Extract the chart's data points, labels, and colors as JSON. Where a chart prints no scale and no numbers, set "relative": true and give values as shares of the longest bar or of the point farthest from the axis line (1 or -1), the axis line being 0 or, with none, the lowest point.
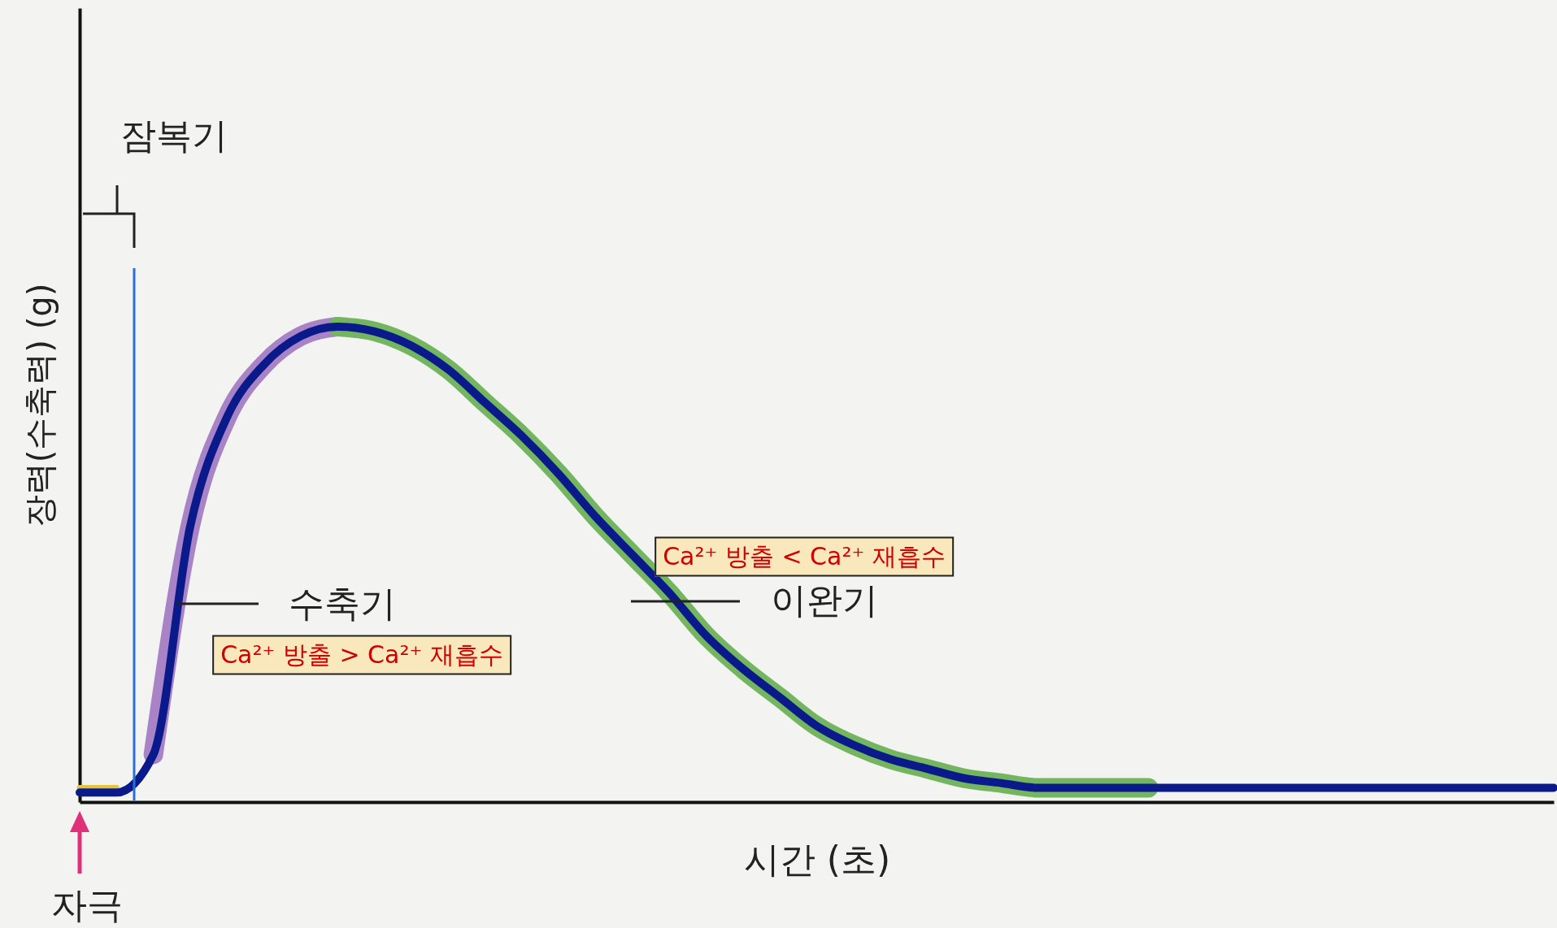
{
  "chart_data": {
    "type": "line",
    "relative": true,
    "xlabel": "시간 (초)",
    "ylabel": "장력(수축력) (g)",
    "marker": "none",
    "line_style": "solid",
    "categories": [
      null,
      null,
      null,
      null,
      null,
      null,
      null,
      null,
      null,
      null,
      null,
      null,
      null,
      null,
      null,
      null,
      null,
      null,
      null,
      null,
      null,
      null,
      null,
      null,
      null,
      null,
      null,
      null,
      null,
      null,
      null,
      null,
      null,
      null,
      null,
      null,
      null,
      null,
      null,
      null,
      null
    ],
    "series": [
      {
        "color": "#a883c6",
        "values": [
          null,
          null,
          0.1,
          0.58,
          0.81,
          0.92,
          0.98,
          1,
          null,
          null,
          null,
          null,
          null,
          null,
          null,
          null,
          null,
          null,
          null,
          null,
          null,
          null,
          null,
          null,
          null,
          null,
          null,
          null,
          null,
          null,
          null,
          null,
          null,
          null,
          null,
          null,
          null,
          null,
          null,
          null,
          null
        ]
      },
      {
        "color": "#74b560",
        "values": [
          null,
          null,
          null,
          null,
          null,
          null,
          null,
          1,
          0.99,
          0.96,
          0.91,
          0.84,
          0.77,
          0.69,
          0.6,
          0.52,
          0.44,
          0.35,
          0.28,
          0.22,
          0.16,
          0.12,
          0.09,
          0.07,
          0.05,
          0.04,
          0.03,
          0.03,
          0.03,
          0.03,
          null,
          null,
          null,
          null,
          null,
          null,
          null,
          null,
          null,
          null,
          null
        ]
      },
      {
        "color": "#e6c43c",
        "values": [
          0.03,
          0.03,
          null,
          null,
          null,
          null,
          null,
          null,
          null,
          null,
          null,
          null,
          null,
          null,
          null,
          null,
          null,
          null,
          null,
          null,
          null,
          null,
          null,
          null,
          null,
          null,
          null,
          null,
          null,
          null,
          null,
          null,
          null,
          null,
          null,
          null,
          null,
          null,
          null,
          null,
          null
        ]
      },
      {
        "color": "#0b1a8a",
        "values": [
          0.02,
          0.02,
          0.1,
          0.58,
          0.81,
          0.92,
          0.98,
          1,
          0.99,
          0.96,
          0.91,
          0.84,
          0.77,
          0.69,
          0.6,
          0.52,
          0.44,
          0.35,
          0.28,
          0.22,
          0.16,
          0.12,
          0.09,
          0.07,
          0.05,
          0.04,
          0.03,
          0.03,
          0.03,
          0.03,
          0.03,
          0.03,
          0.03,
          0.03,
          0.03,
          0.03,
          0.03,
          0.03,
          0.03,
          0.03,
          0.03
        ]
      }
    ],
    "annotations": [
      "잠복기",
      "수축기",
      "이완기",
      "Ca²⁺ 방출 > Ca²⁺ 재흡수",
      "Ca²⁺ 방출 < Ca²⁺ 재흡수",
      "자극"
    ]
  }
}
